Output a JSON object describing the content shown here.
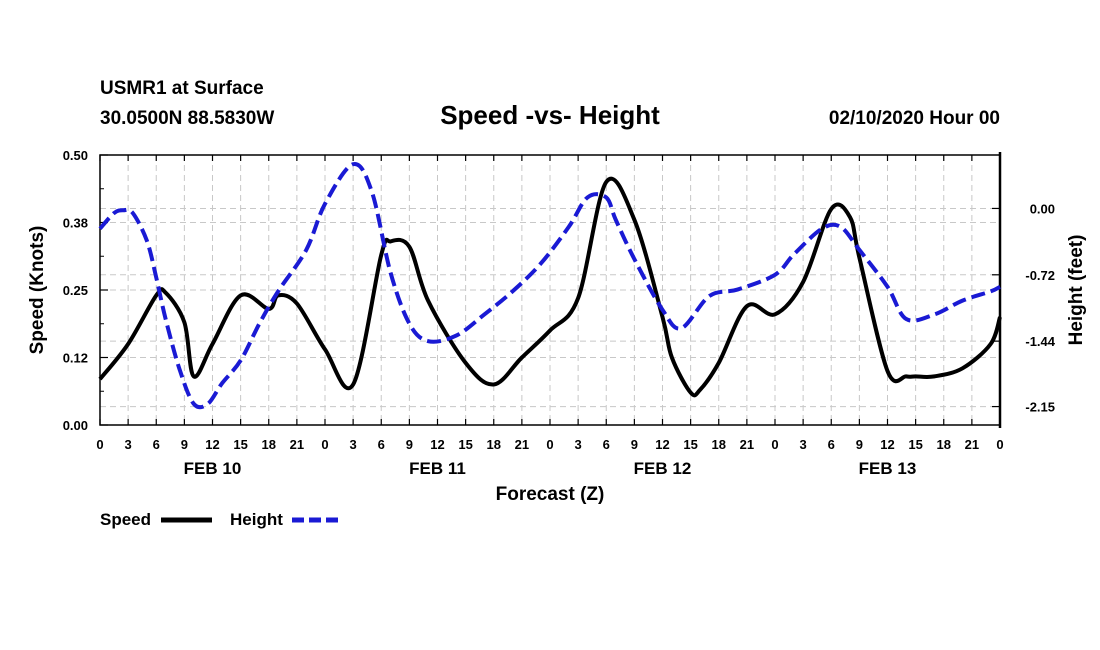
{
  "chart_data": {
    "type": "line",
    "station": "USMR1 at Surface",
    "location": "30.0500N 88.5830W",
    "title": "Speed -vs- Height",
    "datetime": "02/10/2020 Hour 00",
    "xlabel": "Forecast (Z)",
    "ylabel_left": "Speed (Knots)",
    "ylabel_right": "Height (feet)",
    "xlim": [
      0,
      96
    ],
    "ylim_left": [
      0.0,
      0.5
    ],
    "ylim_right": [
      -2.35,
      0.58
    ],
    "yticks_left": [
      "0.00",
      "0.12",
      "0.25",
      "0.38",
      "0.50"
    ],
    "yticks_left_values": [
      0.0,
      0.125,
      0.25,
      0.375,
      0.5
    ],
    "yticks_right": [
      "0.00",
      "-0.72",
      "-1.44",
      "-2.15"
    ],
    "yticks_right_values": [
      0.0,
      -0.72,
      -1.44,
      -2.15
    ],
    "xtick_labels": [
      "0",
      "3",
      "6",
      "9",
      "12",
      "15",
      "18",
      "21",
      "0",
      "3",
      "6",
      "9",
      "12",
      "15",
      "18",
      "21",
      "0",
      "3",
      "6",
      "9",
      "12",
      "15",
      "18",
      "21",
      "0",
      "3",
      "6",
      "9",
      "12",
      "15",
      "18",
      "21",
      "0"
    ],
    "day_labels": [
      {
        "label": "FEB 10",
        "hour": 12
      },
      {
        "label": "FEB 11",
        "hour": 36
      },
      {
        "label": "FEB 12",
        "hour": 60
      },
      {
        "label": "FEB 13",
        "hour": 84
      }
    ],
    "grid": true,
    "legend": [
      {
        "name": "Speed",
        "color": "#000000",
        "style": "solid"
      },
      {
        "name": "Height",
        "color": "#1a1ad4",
        "style": "dashed"
      }
    ],
    "series": [
      {
        "name": "Speed",
        "axis": "left",
        "color": "#000000",
        "x": [
          0,
          3,
          6,
          7,
          9,
          10,
          12,
          15,
          18,
          19,
          21,
          24,
          27,
          30,
          31,
          33,
          35,
          39,
          42,
          45,
          48,
          51,
          54,
          57,
          60,
          61,
          63,
          64,
          66,
          69,
          72,
          75,
          78,
          80,
          81,
          84,
          86,
          87,
          89,
          92,
          95,
          96
        ],
        "y": [
          0.085,
          0.15,
          0.24,
          0.245,
          0.19,
          0.09,
          0.15,
          0.24,
          0.215,
          0.24,
          0.225,
          0.14,
          0.075,
          0.315,
          0.34,
          0.33,
          0.23,
          0.115,
          0.075,
          0.125,
          0.175,
          0.235,
          0.45,
          0.38,
          0.2,
          0.125,
          0.06,
          0.065,
          0.115,
          0.22,
          0.205,
          0.265,
          0.4,
          0.385,
          0.31,
          0.1,
          0.09,
          0.09,
          0.09,
          0.105,
          0.15,
          0.2
        ]
      },
      {
        "name": "Height",
        "axis": "right",
        "color": "#1a1ad4",
        "x": [
          0,
          1.5,
          2.5,
          3.5,
          5,
          6,
          7,
          8.5,
          10,
          11.5,
          13,
          15,
          17,
          19,
          22,
          24,
          27,
          29,
          31,
          33,
          35,
          38,
          41,
          44,
          47,
          50,
          52,
          54,
          55,
          57,
          60,
          62,
          65,
          68,
          72,
          74,
          77,
          79,
          81,
          84,
          86,
          89,
          92,
          95,
          96
        ],
        "y": [
          -0.22,
          -0.05,
          -0.02,
          -0.05,
          -0.35,
          -0.75,
          -1.2,
          -1.75,
          -2.12,
          -2.12,
          -1.9,
          -1.65,
          -1.25,
          -0.9,
          -0.45,
          0.05,
          0.48,
          0.18,
          -0.7,
          -1.25,
          -1.44,
          -1.38,
          -1.15,
          -0.9,
          -0.6,
          -0.2,
          0.12,
          0.12,
          -0.12,
          -0.55,
          -1.1,
          -1.3,
          -0.95,
          -0.88,
          -0.72,
          -0.5,
          -0.22,
          -0.2,
          -0.45,
          -0.85,
          -1.2,
          -1.15,
          -1.0,
          -0.9,
          -0.85
        ]
      }
    ]
  }
}
